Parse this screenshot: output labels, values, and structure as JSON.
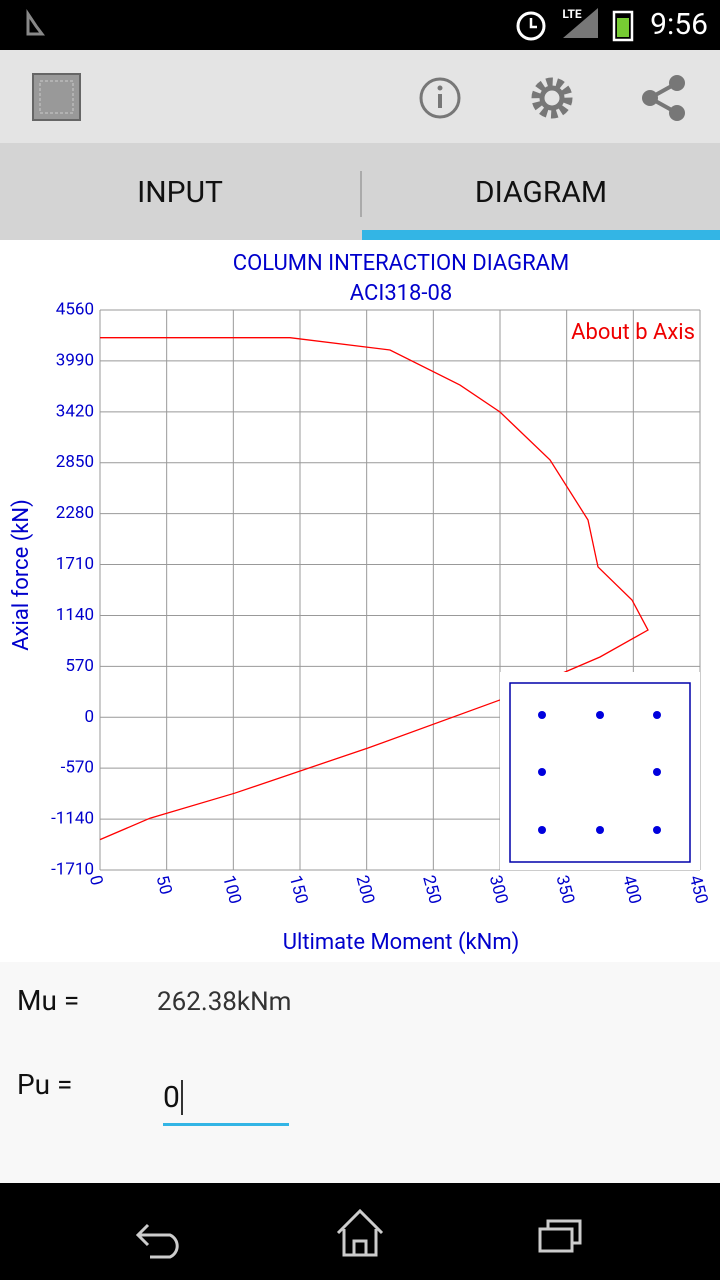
{
  "status_bar": {
    "network": "LTE",
    "time": "9:56"
  },
  "tabs": [
    "INPUT",
    "DIAGRAM"
  ],
  "chart_data": {
    "type": "line",
    "title": "COLUMN INTERACTION DIAGRAM",
    "subtitle": "ACI318-08",
    "x_label": "Ultimate Moment (kNm)",
    "y_label": "Axial force (kN)",
    "annotation": "About b Axis",
    "x": [
      0,
      37.5,
      101,
      201,
      300,
      375,
      411,
      399,
      373.5,
      366,
      337.5,
      300,
      270,
      217.5,
      142.5,
      0
    ],
    "series": [
      {
        "color": "#ff0000",
        "values": [
          -1370,
          -1130,
          -850,
          -344,
          194,
          675,
          977,
          1313,
          1683,
          2209,
          2881,
          3418,
          3720,
          4112,
          4250,
          4250
        ]
      }
    ],
    "xlim": [
      0,
      450
    ],
    "xticks": [
      0,
      50,
      100,
      150,
      200,
      250,
      300,
      350,
      400,
      450
    ],
    "ylim": [
      -1710,
      4560
    ],
    "yticks": [
      4560,
      3990,
      3420,
      2850,
      2280,
      1710,
      1140,
      570,
      0,
      -570,
      -1140,
      -1710
    ],
    "grid": true,
    "axis_color": "#0000cc"
  },
  "results": {
    "mu_label": "Mu =",
    "mu_value": "262.38kNm",
    "pu_label": "Pu =",
    "pu_value": "0"
  }
}
